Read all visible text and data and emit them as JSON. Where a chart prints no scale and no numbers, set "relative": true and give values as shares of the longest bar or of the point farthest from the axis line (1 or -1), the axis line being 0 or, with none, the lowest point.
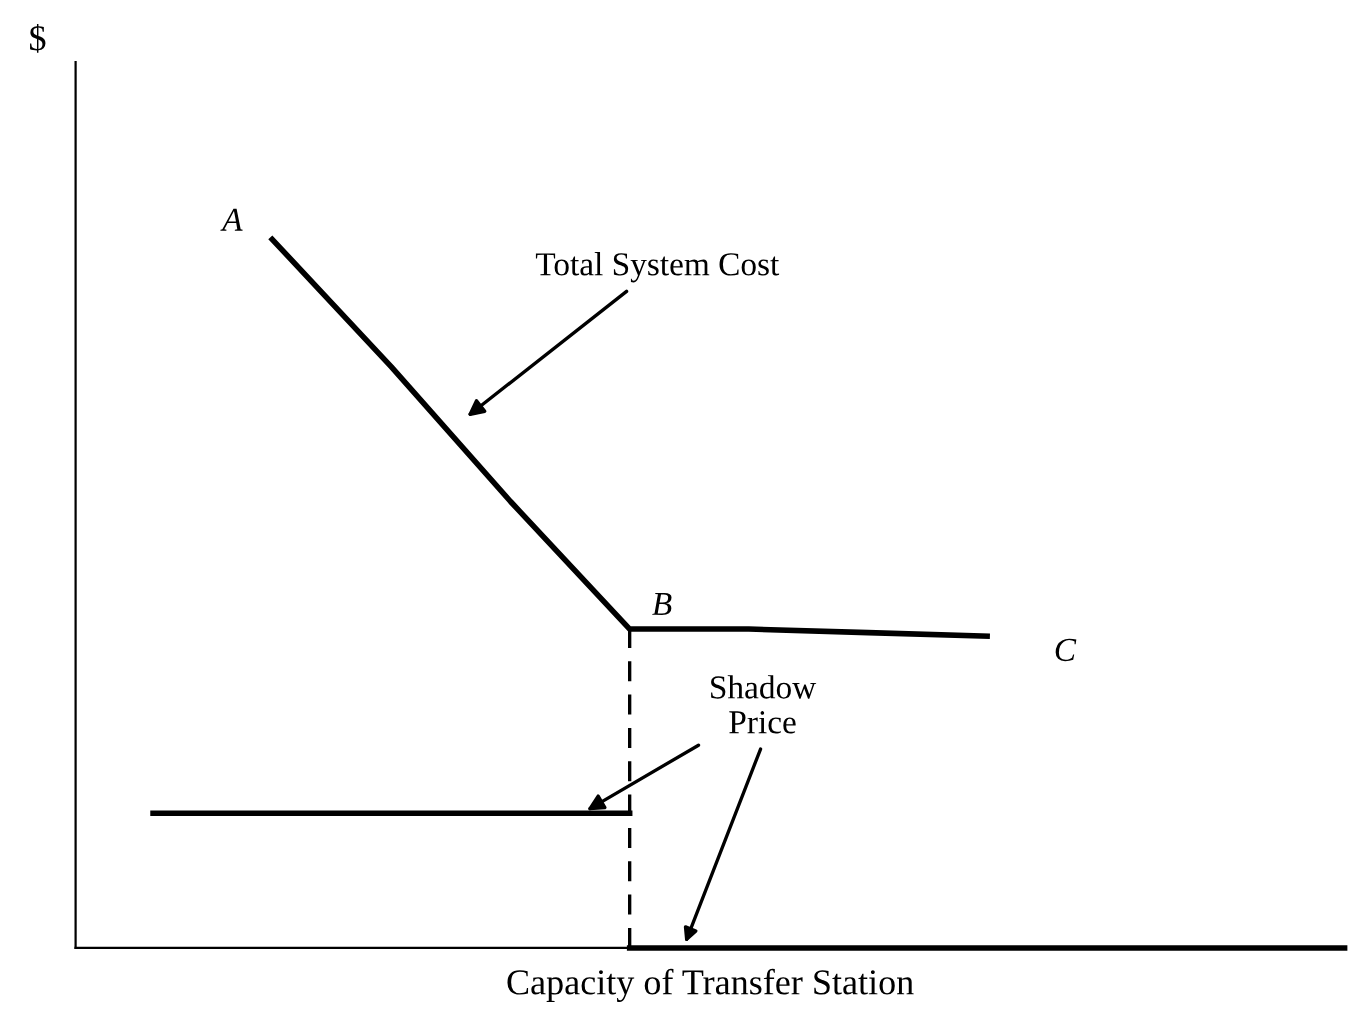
{
  "chart_data": {
    "type": "line",
    "relative": true,
    "xlabel": "Capacity of Transfer Station",
    "categories": [
      null,
      null,
      null,
      null,
      null,
      null,
      null,
      null,
      null,
      null,
      null
    ],
    "series": [
      {
        "color": "#000000",
        "values": [
          null,
          1,
          0.82,
          0.63,
          0.45,
          0.45,
          0.445,
          0.44,
          null,
          null,
          null
        ]
      },
      {
        "color": "#000000",
        "values": [
          0.19,
          0.19,
          0.19,
          0.19,
          0.19,
          null,
          null,
          null,
          null,
          null,
          null
        ]
      },
      {
        "color": "#000000",
        "values": [
          null,
          null,
          null,
          null,
          0,
          0,
          0,
          0,
          0,
          0,
          0
        ]
      }
    ],
    "annotations": [
      "$",
      "A",
      "B",
      "C",
      "Total System Cost",
      "Shadow\nPrice"
    ],
    "marker": "none",
    "line_style": "solid"
  }
}
